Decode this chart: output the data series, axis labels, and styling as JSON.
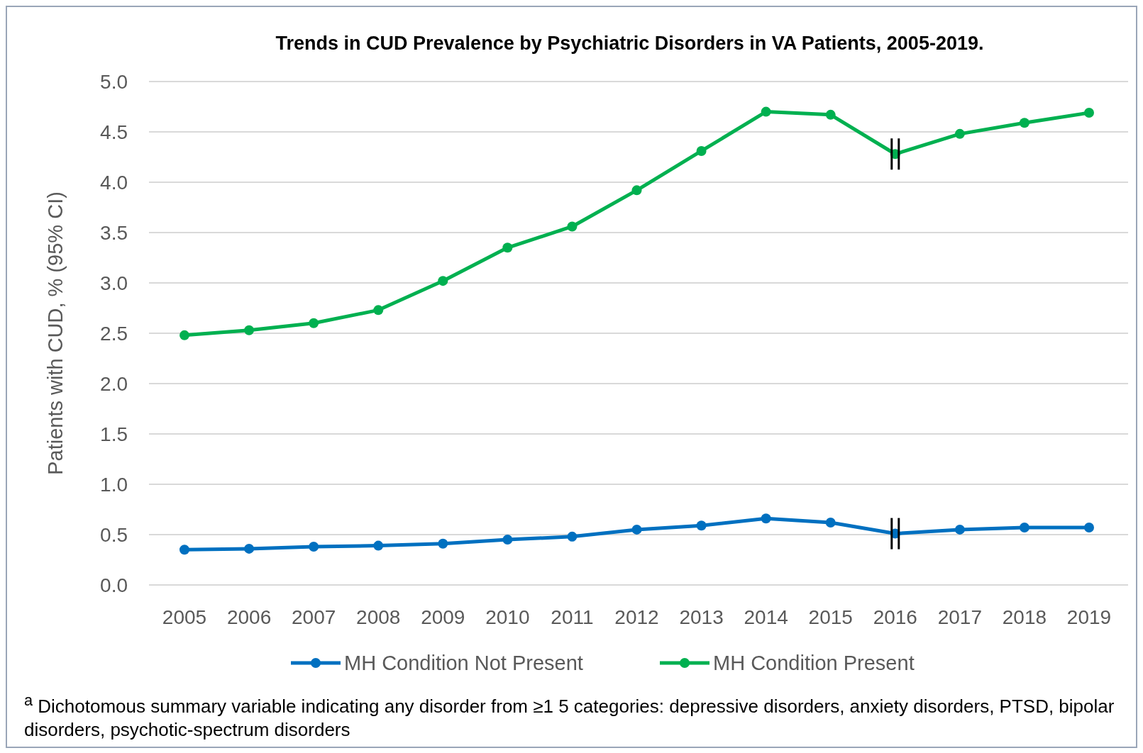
{
  "chart_data": {
    "type": "line",
    "title": "Trends in CUD Prevalence by Psychiatric Disorders in VA Patients, 2005-2019.",
    "ylabel": "Patients with CUD, % (95% CI)",
    "categories": [
      "2005",
      "2006",
      "2007",
      "2008",
      "2009",
      "2010",
      "2011",
      "2012",
      "2013",
      "2014",
      "2015",
      "2016",
      "2017",
      "2018",
      "2019"
    ],
    "series": [
      {
        "name": "MH Condition Not Present",
        "color": "#0070c0",
        "values": [
          0.35,
          0.36,
          0.38,
          0.39,
          0.41,
          0.45,
          0.48,
          0.55,
          0.59,
          0.66,
          0.62,
          0.51,
          0.55,
          0.57,
          0.57
        ]
      },
      {
        "name": "MH Condition Present",
        "color": "#00b050",
        "values": [
          2.48,
          2.53,
          2.6,
          2.73,
          3.02,
          3.35,
          3.56,
          3.92,
          4.31,
          4.7,
          4.67,
          4.28,
          4.48,
          4.59,
          4.69
        ]
      }
    ],
    "ylim": [
      0,
      5
    ],
    "yticks": [
      {
        "value": 0,
        "label": "0.0"
      },
      {
        "value": 0.5,
        "label": "0.5"
      },
      {
        "value": 1,
        "label": "1.0"
      },
      {
        "value": 1.5,
        "label": "1.5"
      },
      {
        "value": 2,
        "label": "2.0"
      },
      {
        "value": 2.5,
        "label": "2.5"
      },
      {
        "value": 3,
        "label": "3.0"
      },
      {
        "value": 3.5,
        "label": "3.5"
      },
      {
        "value": 4,
        "label": "4.0"
      },
      {
        "value": 4.5,
        "label": "4.5"
      },
      {
        "value": 5,
        "label": "5.0"
      }
    ],
    "grid": "y",
    "legend": "bottom",
    "marker": "circle",
    "line_style": "solid",
    "annotations": [
      "$^{a}$ Dichotomous summary variable indicating any disorder from ≥1 5 categories: depressive disorders, anxiety disorders, PTSD, bipolar disorders, psychotic-spectrum disorders"
    ]
  }
}
